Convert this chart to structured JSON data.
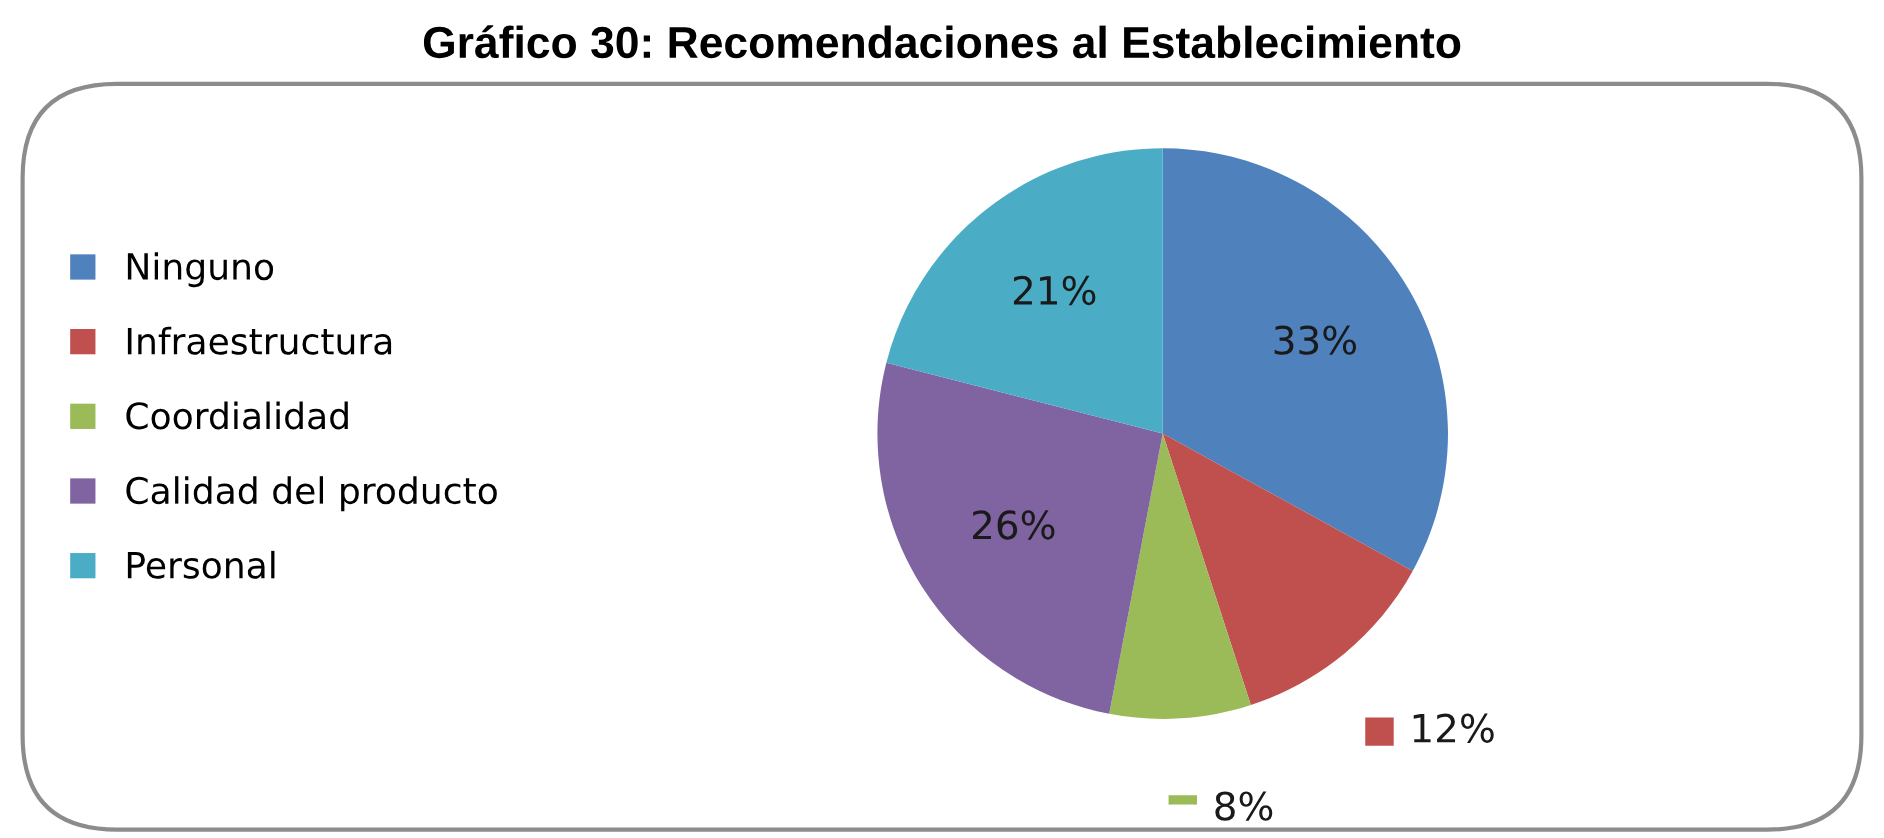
{
  "chart_data": {
    "type": "pie",
    "title": "Gráfico 30: Recomendaciones al Establecimiento",
    "categories": [
      "Ninguno",
      "Infraestructura",
      "Coordialidad",
      "Calidad del producto",
      "Personal"
    ],
    "values": [
      33,
      12,
      8,
      26,
      21
    ],
    "colors": [
      "#4f81bd",
      "#c0504d",
      "#9bbb59",
      "#8064a2",
      "#4bacc6"
    ],
    "value_labels": [
      "33%",
      "12%",
      "8%",
      "26%",
      "21%"
    ],
    "legend": "left"
  }
}
